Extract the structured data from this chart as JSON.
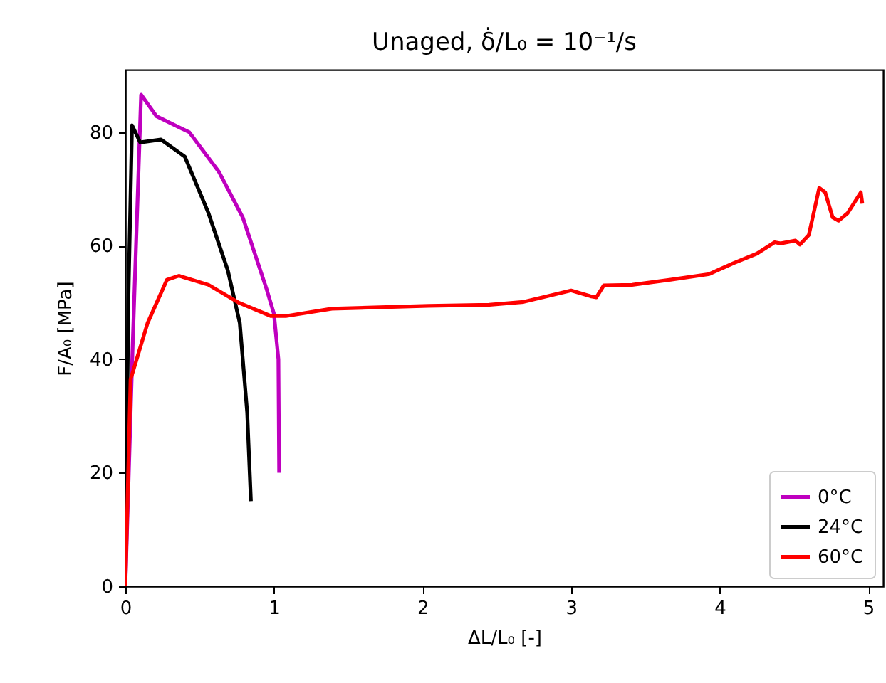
{
  "chart_data": {
    "type": "line",
    "title": "Unaged, δ̇/L₀ = 10⁻¹/s",
    "xlabel": "ΔL/L₀ [-]",
    "ylabel": "F/A₀ [MPa]",
    "xlim": [
      0,
      5.1
    ],
    "ylim": [
      0,
      91
    ],
    "xticks": [
      0,
      1,
      2,
      3,
      4,
      5
    ],
    "yticks": [
      0,
      20,
      40,
      60,
      80
    ],
    "grid": false,
    "legend": "bottom right",
    "marker": "none",
    "line_style": "solid",
    "series": [
      {
        "name": "0°C",
        "color": "#bf00bf",
        "x": [
          0,
          0.05,
          0.106,
          0.21,
          0.43,
          0.63,
          0.79,
          0.95,
          1.0,
          1.03,
          1.035
        ],
        "values": [
          0,
          43,
          86.6,
          82.8,
          80,
          73,
          65,
          52.4,
          48,
          40,
          20
        ]
      },
      {
        "name": "24°C",
        "color": "#000000",
        "x": [
          0,
          0.02,
          0.045,
          0.1,
          0.24,
          0.4,
          0.56,
          0.69,
          0.77,
          0.82,
          0.845
        ],
        "values": [
          0,
          50,
          81.2,
          78.2,
          78.7,
          75.7,
          65.7,
          55.6,
          46.4,
          30.6,
          15
        ]
      },
      {
        "name": "60°C",
        "color": "#ff0000",
        "x": [
          0,
          0.035,
          0.15,
          0.28,
          0.36,
          0.56,
          0.76,
          0.98,
          1.08,
          1.39,
          2.04,
          2.45,
          2.68,
          3.0,
          3.13,
          3.17,
          3.22,
          3.41,
          3.67,
          3.93,
          4.09,
          4.25,
          4.37,
          4.41,
          4.51,
          4.54,
          4.6,
          4.67,
          4.71,
          4.76,
          4.8,
          4.86,
          4.95,
          4.96
        ],
        "values": [
          0,
          36.4,
          46.4,
          54,
          54.7,
          53.1,
          50,
          47.6,
          47.6,
          48.9,
          49.4,
          49.6,
          50.1,
          52.1,
          51.1,
          50.9,
          53,
          53.1,
          54,
          55,
          56.9,
          58.6,
          60.6,
          60.4,
          60.9,
          60.2,
          61.9,
          70.2,
          69.4,
          65,
          64.4,
          65.7,
          69.4,
          67.4
        ]
      }
    ]
  }
}
